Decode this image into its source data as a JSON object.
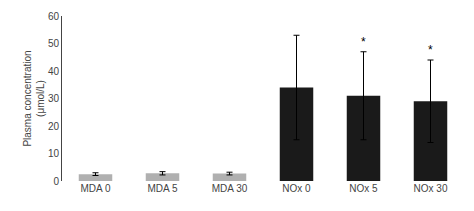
{
  "chart_data": {
    "type": "bar",
    "categories": [
      "MDA 0",
      "MDA 5",
      "MDA 30",
      "NOx 0",
      "NOx 5",
      "NOx 30"
    ],
    "values": [
      2.5,
      2.8,
      2.7,
      34.0,
      31.0,
      29.0
    ],
    "errors": [
      0.5,
      0.6,
      0.5,
      19.0,
      16.0,
      15.0
    ],
    "colors": [
      "#b0b0b0",
      "#b0b0b0",
      "#b0b0b0",
      "#1a1a1a",
      "#1a1a1a",
      "#1a1a1a"
    ],
    "ylabel": "Plasma concentration\n(μmol/L)",
    "annotations": [
      {
        "category": "NOx 5",
        "text": "*"
      },
      {
        "category": "NOx 30",
        "text": "*"
      }
    ],
    "ylim": [
      0,
      60
    ],
    "yticks": [
      0,
      10,
      20,
      30,
      40,
      50,
      60
    ],
    "grid": false
  }
}
